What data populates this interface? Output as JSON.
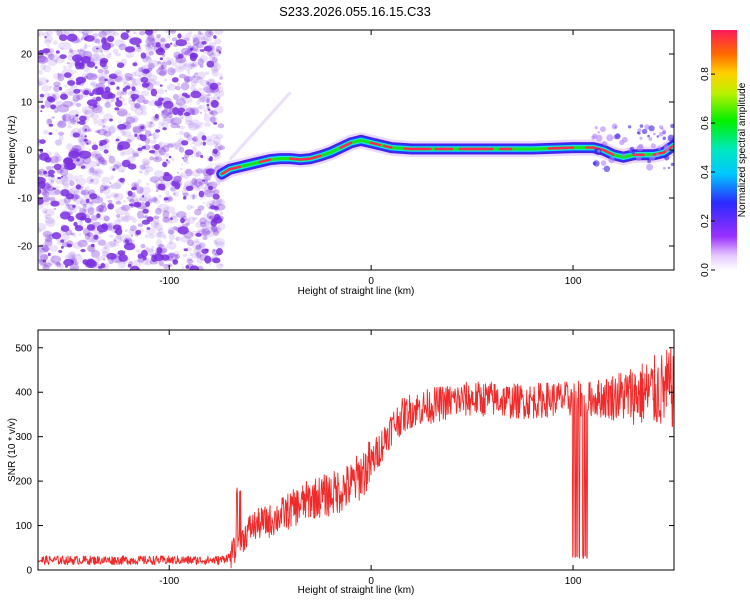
{
  "title": "S233.2026.055.16.15.C33",
  "colors": {
    "snr_line": "#ee2a2a",
    "scatter": "#7a2fe0",
    "track_low": "#1f3bff",
    "track_mid": "#17e3e3",
    "track_high": "#19e21a",
    "track_peak": "#ff2a55"
  },
  "chart_data": [
    {
      "type": "heatmap",
      "title": "S233.2026.055.16.15.C33",
      "xlabel": "Height of straight line (km)",
      "ylabel": "Frequency (Hz)",
      "xlim": [
        -165,
        150
      ],
      "ylim": [
        -25,
        25
      ],
      "xticks": [
        -100,
        0,
        100
      ],
      "xtick_labels": [
        "-100",
        "0",
        "100"
      ],
      "yticks": [
        -20,
        -10,
        0,
        10,
        20
      ],
      "ytick_labels": [
        "-20",
        "-10",
        "0",
        "10",
        "20"
      ],
      "noise_region_x": [
        -165,
        -74
      ],
      "track": {
        "x": [
          -74,
          -70,
          -65,
          -60,
          -55,
          -50,
          -45,
          -40,
          -35,
          -30,
          -25,
          -20,
          -15,
          -10,
          -5,
          0,
          10,
          20,
          40,
          60,
          80,
          100,
          110,
          115,
          120,
          125,
          130,
          135,
          140,
          145,
          150
        ],
        "y": [
          -5,
          -4,
          -3.5,
          -3,
          -2.5,
          -2,
          -1.8,
          -1.8,
          -2,
          -1.8,
          -1.2,
          -0.5,
          0.5,
          1.5,
          2,
          1.5,
          0.5,
          0.2,
          0.2,
          0.2,
          0.2,
          0.5,
          0.5,
          0,
          -1,
          -1.5,
          -1,
          -1,
          -1,
          -0.5,
          1
        ]
      },
      "colorbar": {
        "label": "Normalized spectral amplitude",
        "ticks": [
          0.0,
          0.2,
          0.4,
          0.6,
          0.8
        ],
        "tick_labels": [
          "0.0",
          "0.2",
          "0.4",
          "0.6",
          "0.8"
        ],
        "range": [
          0,
          0.98
        ]
      }
    },
    {
      "type": "line",
      "xlabel": "Height of straight line (km)",
      "ylabel": "SNR (10 * v/v)",
      "xlim": [
        -165,
        150
      ],
      "ylim": [
        0,
        540
      ],
      "xticks": [
        -100,
        0,
        100
      ],
      "xtick_labels": [
        "-100",
        "0",
        "100"
      ],
      "yticks": [
        0,
        100,
        200,
        300,
        400,
        500
      ],
      "ytick_labels": [
        "0",
        "100",
        "200",
        "300",
        "400",
        "500"
      ],
      "series": [
        {
          "name": "SNR",
          "x": [
            -165,
            -150,
            -130,
            -110,
            -90,
            -75,
            -70,
            -65,
            -60,
            -55,
            -50,
            -40,
            -30,
            -20,
            -10,
            0,
            5,
            10,
            15,
            20,
            30,
            40,
            50,
            60,
            70,
            80,
            90,
            100,
            110,
            120,
            130,
            140,
            145,
            150
          ],
          "values": [
            22,
            22,
            22,
            22,
            22,
            22,
            30,
            60,
            95,
            105,
            110,
            135,
            160,
            170,
            190,
            240,
            280,
            320,
            345,
            360,
            370,
            380,
            385,
            385,
            380,
            380,
            385,
            385,
            385,
            390,
            395,
            400,
            405,
            410
          ]
        }
      ],
      "dropouts_x": [
        100,
        101,
        102,
        103,
        105,
        106,
        107
      ]
    }
  ]
}
